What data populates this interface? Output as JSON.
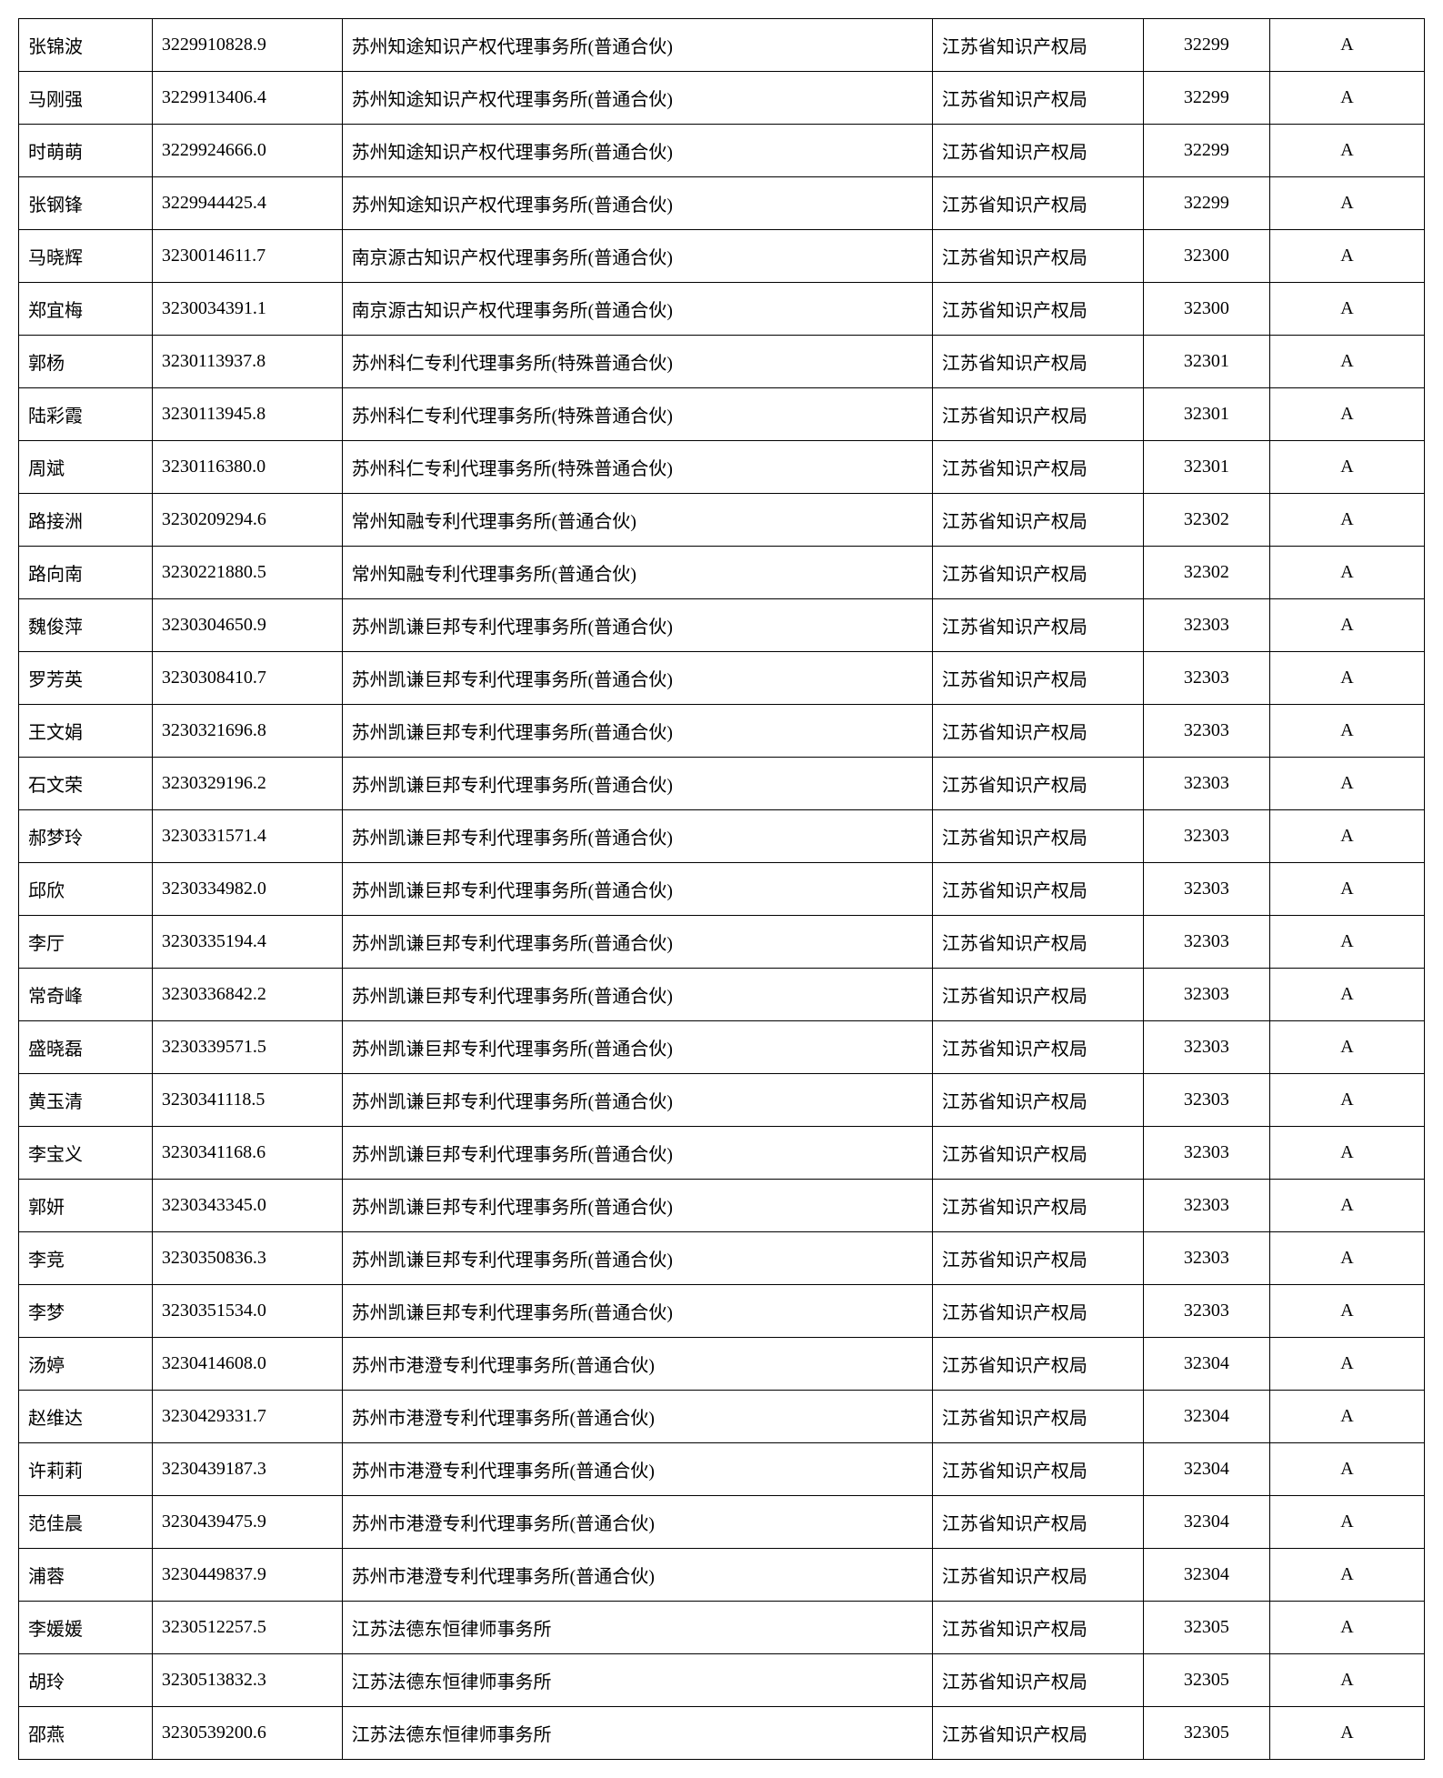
{
  "table": {
    "columns": [
      "name",
      "id",
      "agency",
      "bureau",
      "code",
      "grade"
    ],
    "col_classes": [
      "col-name",
      "col-id",
      "col-agency",
      "col-bureau",
      "col-code",
      "col-grade"
    ],
    "rows": [
      [
        "张锦波",
        "3229910828.9",
        "苏州知途知识产权代理事务所(普通合伙)",
        "江苏省知识产权局",
        "32299",
        "A"
      ],
      [
        "马刚强",
        "3229913406.4",
        "苏州知途知识产权代理事务所(普通合伙)",
        "江苏省知识产权局",
        "32299",
        "A"
      ],
      [
        "时萌萌",
        "3229924666.0",
        "苏州知途知识产权代理事务所(普通合伙)",
        "江苏省知识产权局",
        "32299",
        "A"
      ],
      [
        "张钢锋",
        "3229944425.4",
        "苏州知途知识产权代理事务所(普通合伙)",
        "江苏省知识产权局",
        "32299",
        "A"
      ],
      [
        "马晓辉",
        "3230014611.7",
        "南京源古知识产权代理事务所(普通合伙)",
        "江苏省知识产权局",
        "32300",
        "A"
      ],
      [
        "郑宜梅",
        "3230034391.1",
        "南京源古知识产权代理事务所(普通合伙)",
        "江苏省知识产权局",
        "32300",
        "A"
      ],
      [
        "郭杨",
        "3230113937.8",
        "苏州科仁专利代理事务所(特殊普通合伙)",
        "江苏省知识产权局",
        "32301",
        "A"
      ],
      [
        "陆彩霞",
        "3230113945.8",
        "苏州科仁专利代理事务所(特殊普通合伙)",
        "江苏省知识产权局",
        "32301",
        "A"
      ],
      [
        "周斌",
        "3230116380.0",
        "苏州科仁专利代理事务所(特殊普通合伙)",
        "江苏省知识产权局",
        "32301",
        "A"
      ],
      [
        "路接洲",
        "3230209294.6",
        "常州知融专利代理事务所(普通合伙)",
        "江苏省知识产权局",
        "32302",
        "A"
      ],
      [
        "路向南",
        "3230221880.5",
        "常州知融专利代理事务所(普通合伙)",
        "江苏省知识产权局",
        "32302",
        "A"
      ],
      [
        "魏俊萍",
        "3230304650.9",
        "苏州凯谦巨邦专利代理事务所(普通合伙)",
        "江苏省知识产权局",
        "32303",
        "A"
      ],
      [
        "罗芳英",
        "3230308410.7",
        "苏州凯谦巨邦专利代理事务所(普通合伙)",
        "江苏省知识产权局",
        "32303",
        "A"
      ],
      [
        "王文娟",
        "3230321696.8",
        "苏州凯谦巨邦专利代理事务所(普通合伙)",
        "江苏省知识产权局",
        "32303",
        "A"
      ],
      [
        "石文荣",
        "3230329196.2",
        "苏州凯谦巨邦专利代理事务所(普通合伙)",
        "江苏省知识产权局",
        "32303",
        "A"
      ],
      [
        "郝梦玲",
        "3230331571.4",
        "苏州凯谦巨邦专利代理事务所(普通合伙)",
        "江苏省知识产权局",
        "32303",
        "A"
      ],
      [
        "邱欣",
        "3230334982.0",
        "苏州凯谦巨邦专利代理事务所(普通合伙)",
        "江苏省知识产权局",
        "32303",
        "A"
      ],
      [
        "李厅",
        "3230335194.4",
        "苏州凯谦巨邦专利代理事务所(普通合伙)",
        "江苏省知识产权局",
        "32303",
        "A"
      ],
      [
        "常奇峰",
        "3230336842.2",
        "苏州凯谦巨邦专利代理事务所(普通合伙)",
        "江苏省知识产权局",
        "32303",
        "A"
      ],
      [
        "盛晓磊",
        "3230339571.5",
        "苏州凯谦巨邦专利代理事务所(普通合伙)",
        "江苏省知识产权局",
        "32303",
        "A"
      ],
      [
        "黄玉清",
        "3230341118.5",
        "苏州凯谦巨邦专利代理事务所(普通合伙)",
        "江苏省知识产权局",
        "32303",
        "A"
      ],
      [
        "李宝义",
        "3230341168.6",
        "苏州凯谦巨邦专利代理事务所(普通合伙)",
        "江苏省知识产权局",
        "32303",
        "A"
      ],
      [
        "郭妍",
        "3230343345.0",
        "苏州凯谦巨邦专利代理事务所(普通合伙)",
        "江苏省知识产权局",
        "32303",
        "A"
      ],
      [
        "李竞",
        "3230350836.3",
        "苏州凯谦巨邦专利代理事务所(普通合伙)",
        "江苏省知识产权局",
        "32303",
        "A"
      ],
      [
        "李梦",
        "3230351534.0",
        "苏州凯谦巨邦专利代理事务所(普通合伙)",
        "江苏省知识产权局",
        "32303",
        "A"
      ],
      [
        "汤婷",
        "3230414608.0",
        "苏州市港澄专利代理事务所(普通合伙)",
        "江苏省知识产权局",
        "32304",
        "A"
      ],
      [
        "赵维达",
        "3230429331.7",
        "苏州市港澄专利代理事务所(普通合伙)",
        "江苏省知识产权局",
        "32304",
        "A"
      ],
      [
        "许莉莉",
        "3230439187.3",
        "苏州市港澄专利代理事务所(普通合伙)",
        "江苏省知识产权局",
        "32304",
        "A"
      ],
      [
        "范佳晨",
        "3230439475.9",
        "苏州市港澄专利代理事务所(普通合伙)",
        "江苏省知识产权局",
        "32304",
        "A"
      ],
      [
        "浦蓉",
        "3230449837.9",
        "苏州市港澄专利代理事务所(普通合伙)",
        "江苏省知识产权局",
        "32304",
        "A"
      ],
      [
        "李媛媛",
        "3230512257.5",
        "江苏法德东恒律师事务所",
        "江苏省知识产权局",
        "32305",
        "A"
      ],
      [
        "胡玲",
        "3230513832.3",
        "江苏法德东恒律师事务所",
        "江苏省知识产权局",
        "32305",
        "A"
      ],
      [
        "邵燕",
        "3230539200.6",
        "江苏法德东恒律师事务所",
        "江苏省知识产权局",
        "32305",
        "A"
      ]
    ]
  }
}
